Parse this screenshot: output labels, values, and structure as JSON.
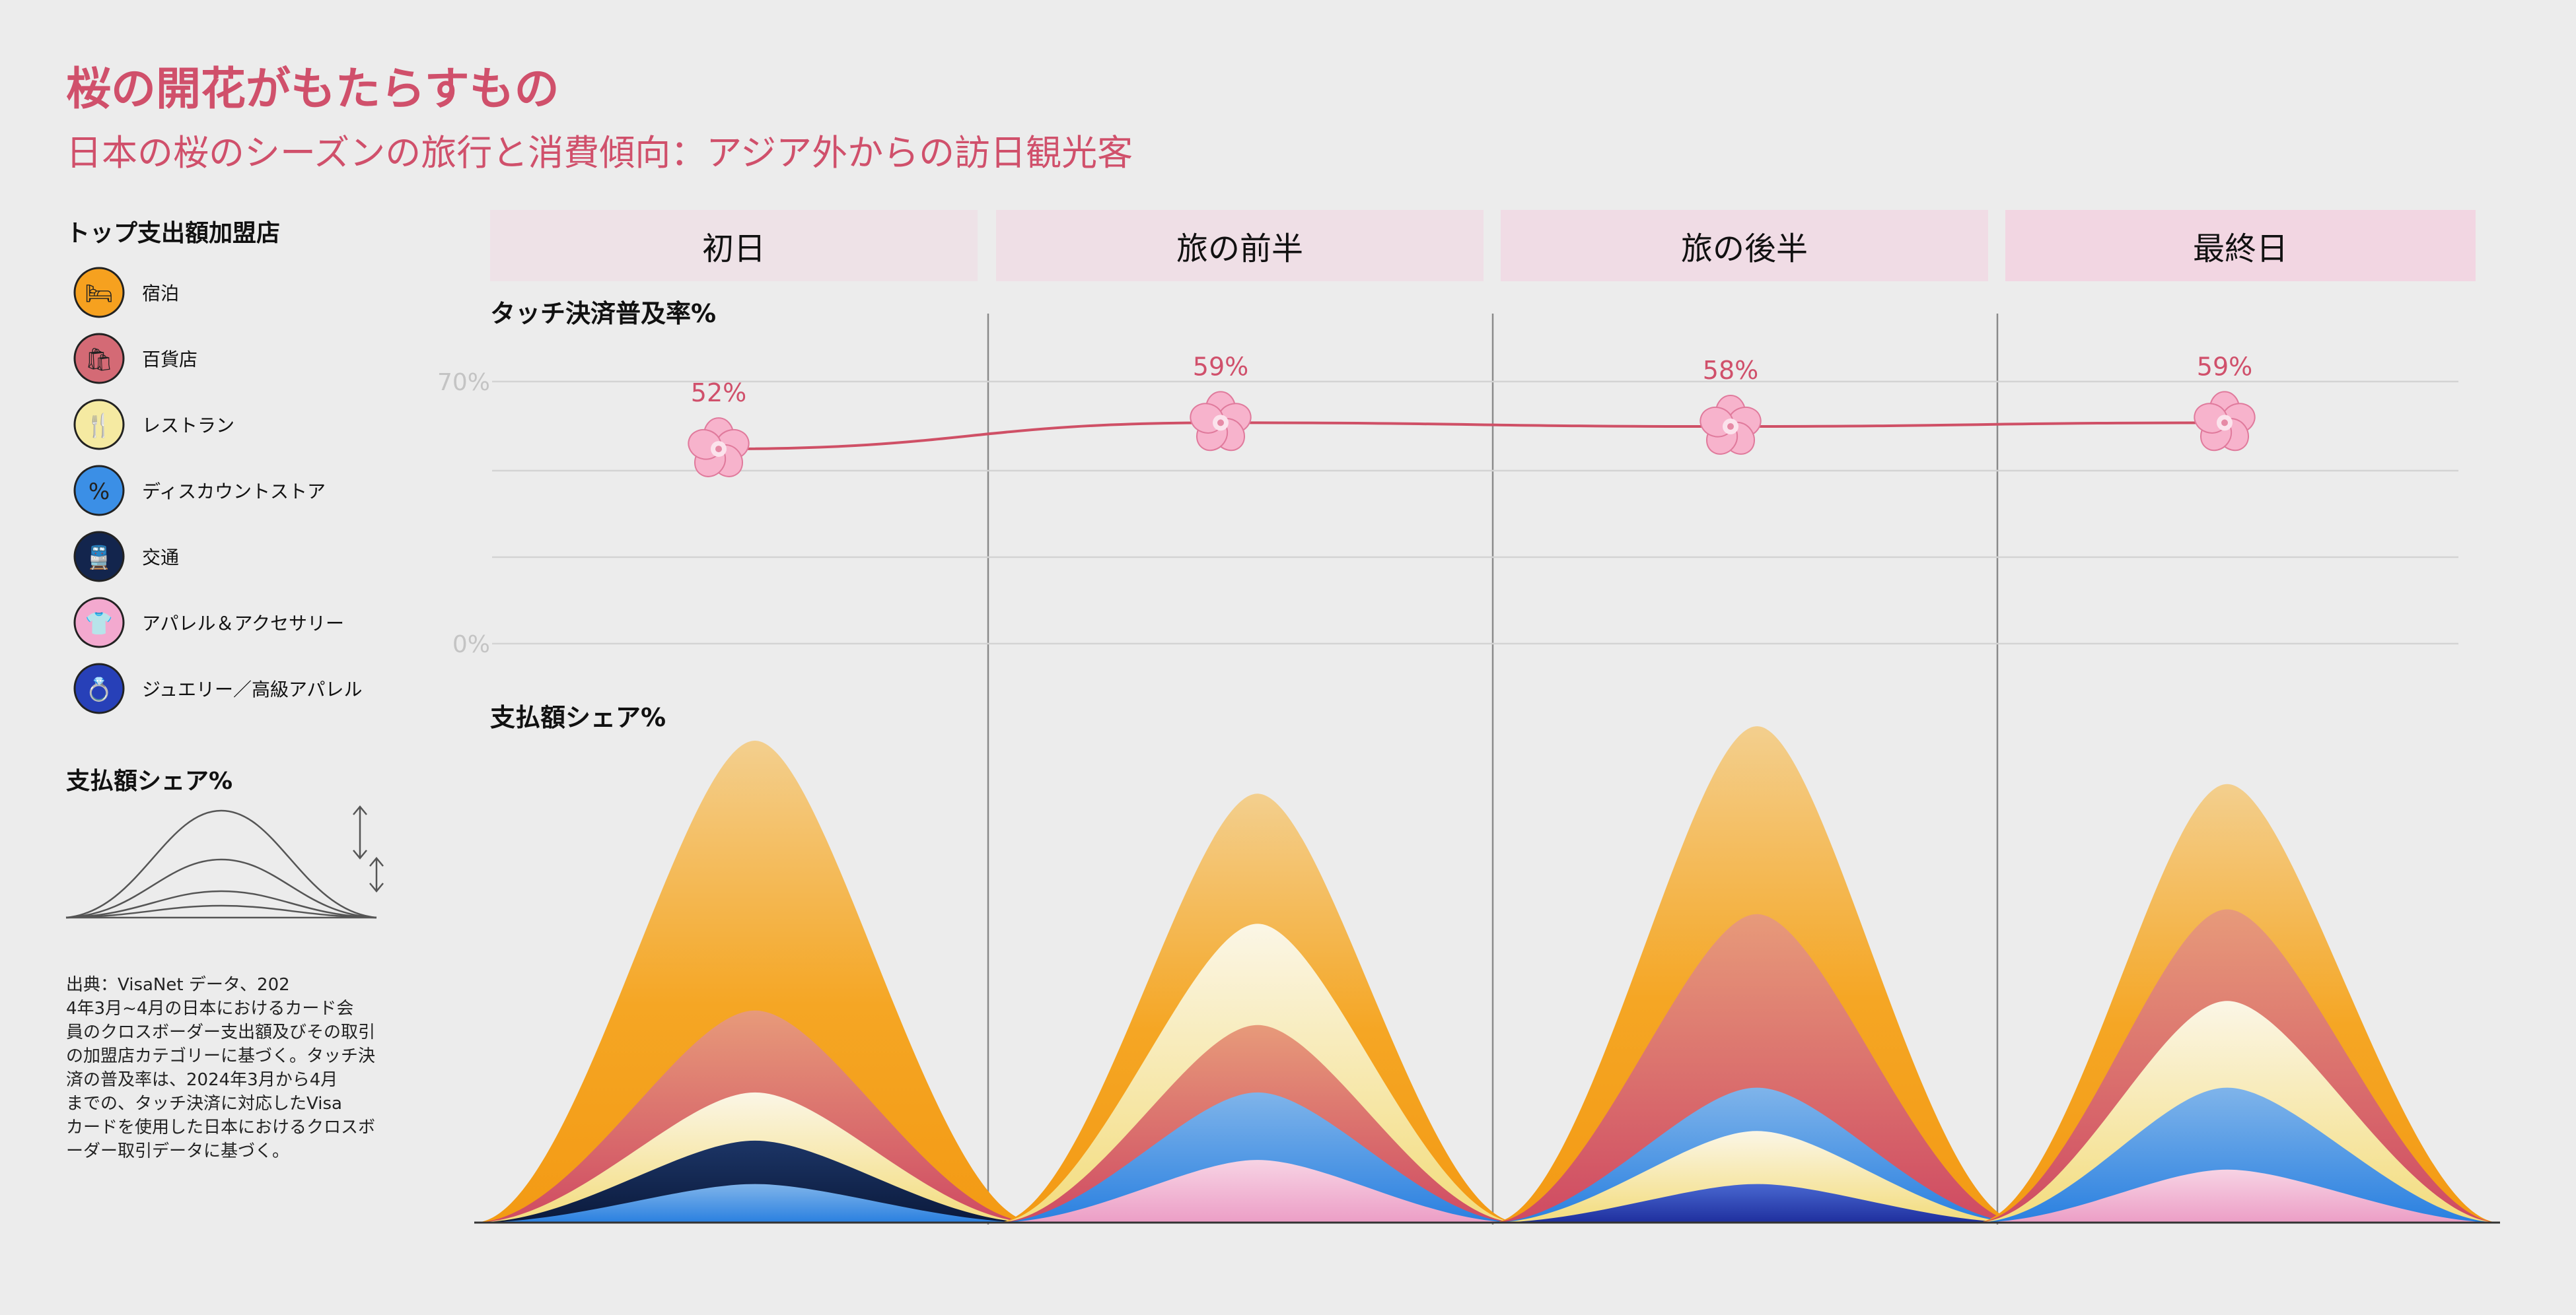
{
  "title": "桜の開花がもたらすもの",
  "subtitle": "日本の桜のシーズンの旅行と消費傾向：アジア外からの訪日観光客",
  "legend": {
    "title": "トップ支出額加盟店",
    "items": [
      {
        "label": "宿泊",
        "color": "#f6a11f",
        "icon": "bed-icon"
      },
      {
        "label": "百貨店",
        "color": "#d46a75",
        "icon": "shopping-bag-icon"
      },
      {
        "label": "レストラン",
        "color": "#f5eaa2",
        "icon": "fork-knife-icon"
      },
      {
        "label": "ディスカウントストア",
        "color": "#3b8fe6",
        "icon": "discount-badge-icon"
      },
      {
        "label": "交通",
        "color": "#13254d",
        "icon": "train-icon"
      },
      {
        "label": "アパレル＆アクセサリー",
        "color": "#f3a9cf",
        "icon": "clothing-icon"
      },
      {
        "label": "ジュエリー／高級アパレル",
        "color": "#2740b8",
        "icon": "rings-icon"
      }
    ]
  },
  "share_key": {
    "title": "支払額シェア%"
  },
  "source": "出典：VisaNet データ、2024年3月~4月の日本におけるカード会員のクロスボーダー支出額及びその取引の加盟店カテゴリーに基づく。タッチ決済の普及率は、2024年3月から4月までの、タッチ決済に対応したVisaカードを使用した日本におけるクロスボーダー取引データに基づく。",
  "colors": {
    "accent": "#d0506b",
    "line": "#cf5066",
    "stage_bg": "#f2dde6"
  },
  "chart_data": [
    {
      "type": "line",
      "title": "タッチ決済普及率%",
      "categories": [
        "初日",
        "旅の前半",
        "旅の後半",
        "最終日"
      ],
      "values": [
        52,
        59,
        58,
        59
      ],
      "data_labels": [
        "52%",
        "59%",
        "58%",
        "59%"
      ],
      "y_ticks": [
        "0%",
        "70%"
      ],
      "ylim": [
        0,
        70
      ],
      "marker": "sakura-flower-icon",
      "grid": true
    },
    {
      "type": "area",
      "title": "支払額シェア%",
      "categories": [
        "初日",
        "旅の前半",
        "旅の後半",
        "最終日"
      ],
      "series": [
        {
          "name": "宿泊",
          "values": [
            100,
            89,
            103,
            91
          ]
        },
        {
          "name": "百貨店",
          "values": [
            44,
            41,
            64,
            65
          ]
        },
        {
          "name": "レストラン",
          "values": [
            27,
            62,
            19,
            46
          ]
        },
        {
          "name": "交通",
          "values": [
            17,
            0,
            0,
            0
          ]
        },
        {
          "name": "ディスカウントストア",
          "values": [
            8,
            27,
            28,
            28
          ]
        },
        {
          "name": "アパレル＆アクセサリー",
          "values": [
            0,
            13,
            0,
            11
          ]
        },
        {
          "name": "ジュエリー／高級アパレル",
          "values": [
            0,
            0,
            8,
            0
          ]
        }
      ],
      "grid": false
    }
  ]
}
